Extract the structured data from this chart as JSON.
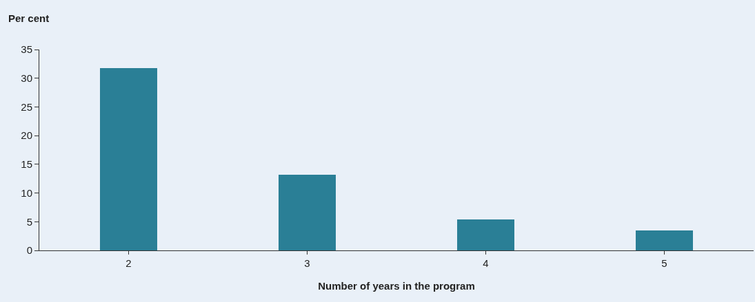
{
  "chart_data": {
    "type": "bar",
    "xlabel": "Number of years in the program",
    "ylabel": "Per cent",
    "categories": [
      "2",
      "3",
      "4",
      "5"
    ],
    "values": [
      31.8,
      13.2,
      5.4,
      3.5
    ],
    "color": "#2a7f96",
    "ylim": [
      0,
      35
    ],
    "yticks": [
      0,
      5,
      10,
      15,
      20,
      25,
      30,
      35
    ],
    "grid": false
  }
}
